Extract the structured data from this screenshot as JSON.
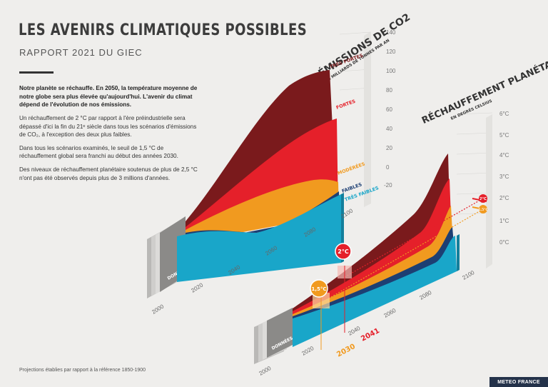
{
  "header": {
    "title": "LES AVENIRS CLIMATIQUES POSSIBLES",
    "subtitle": "RAPPORT 2021 DU GIEC"
  },
  "text": {
    "lead": "Notre planète se réchauffe. En 2050, la température moyenne de notre globe sera plus élevée qu'aujourd'hui. L'avenir du climat dépend de l'évolution de nos émissions.",
    "p1": "Un réchauffement de 2 °C par rapport à l'ère préindustrielle sera dépassé d'ici la fin du 21ᵉ siècle dans tous les scénarios d'émissions de CO₂, à l'exception des deux plus faibles.",
    "p2": "Dans tous les scénarios examinés, le seuil de 1,5 °C de réchauffement global sera franchi au début des années 2030.",
    "p3": "Des niveaux de réchauffement planétaire soutenus de plus de 2,5 °C n'ont pas été observés depuis plus de 3 millions d'années."
  },
  "footnote": "Projections établies par rapport à la référence 1850-1900",
  "logo": "METEO FRANCE",
  "chart_data": [
    {
      "type": "area",
      "title": "ÉMISSIONS DE CO2",
      "subtitle": "EN MILLIARDS DE TONNES PAR AN",
      "x_ticks": [
        "2000",
        "2020",
        "2040",
        "2060",
        "2080",
        "2100"
      ],
      "y_ticks": [
        "140",
        "120",
        "100",
        "80",
        "60",
        "40",
        "20",
        "0",
        "-20"
      ],
      "observed_label": "DONNÉES OBSERVÉES",
      "x": [
        2015,
        2030,
        2050,
        2070,
        2090,
        2100
      ],
      "series": [
        {
          "name": "TRÈS FORTES",
          "color": "#7a1a1c",
          "values": [
            40,
            55,
            70,
            85,
            100,
            100
          ]
        },
        {
          "name": "FORTES",
          "color": "#e5202a",
          "values": [
            40,
            45,
            55,
            65,
            72,
            74
          ]
        },
        {
          "name": "MODÉRÉES",
          "color": "#f19a1f",
          "values": [
            40,
            43,
            43,
            38,
            30,
            25
          ]
        },
        {
          "name": "FAIBLES",
          "color": "#1d3f73",
          "values": [
            40,
            30,
            15,
            5,
            -5,
            -10
          ]
        },
        {
          "name": "TRÈS FAIBLES",
          "color": "#19a6c9",
          "values": [
            40,
            25,
            5,
            -10,
            -14,
            -15
          ]
        }
      ]
    },
    {
      "type": "area",
      "title": "RÉCHAUFFEMENT PLANÉTAIRE",
      "subtitle": "EN DEGRÉS CELSIUS",
      "x_ticks": [
        "2000",
        "2020",
        "2040",
        "2060",
        "2080",
        "2100"
      ],
      "y_ticks": [
        "6°C",
        "5°C",
        "4°C",
        "3°C",
        "2°C",
        "1°C",
        "0°C"
      ],
      "observed_label": "DONNÉES OBSERVÉES",
      "x": [
        2015,
        2030,
        2050,
        2070,
        2090,
        2100
      ],
      "series": [
        {
          "name": "TRÈS FORTES",
          "values": [
            1.1,
            1.6,
            2.4,
            3.3,
            4.2,
            4.4
          ]
        },
        {
          "name": "FORTES",
          "values": [
            1.1,
            1.5,
            2.1,
            2.8,
            3.4,
            3.6
          ]
        },
        {
          "name": "MODÉRÉES",
          "values": [
            1.1,
            1.5,
            2.0,
            2.4,
            2.6,
            2.7
          ]
        },
        {
          "name": "FAIBLES",
          "values": [
            1.1,
            1.5,
            1.7,
            1.8,
            1.8,
            1.8
          ]
        },
        {
          "name": "TRÈS FAIBLES",
          "values": [
            1.1,
            1.5,
            1.6,
            1.5,
            1.4,
            1.4
          ]
        }
      ],
      "thresholds": [
        {
          "label": "1,5°C",
          "year": "2030",
          "color": "#f19a1f"
        },
        {
          "label": "2°C",
          "year": "2041",
          "color": "#e5202a"
        }
      ]
    }
  ]
}
